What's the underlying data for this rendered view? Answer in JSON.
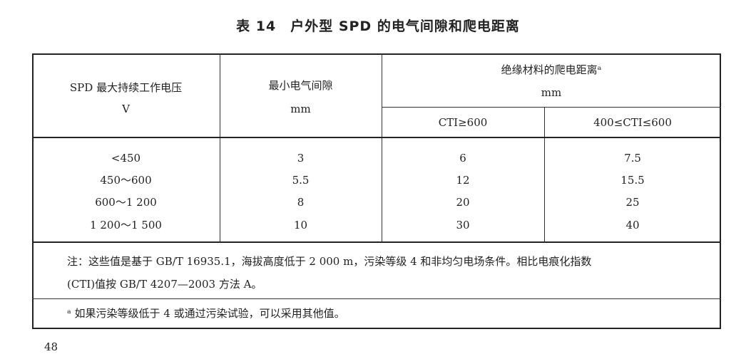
{
  "title": "表 14　户外型 SPD 的电气间隙和爬电距离",
  "table": {
    "headers": {
      "col1": {
        "label": "SPD 最大持续工作电压",
        "unit": "V"
      },
      "col2": {
        "label": "最小电气间隙",
        "unit": "mm"
      },
      "group": {
        "label": "绝缘材料的爬电距离ᵃ",
        "unit": "mm"
      },
      "col3": "CTI≥600",
      "col4": "400≤CTI≤600"
    },
    "rows": [
      [
        "<450",
        "3",
        "6",
        "7.5"
      ],
      [
        "450～600",
        "5.5",
        "12",
        "15.5"
      ],
      [
        "600～1 200",
        "8",
        "20",
        "25"
      ],
      [
        "1 200～1 500",
        "10",
        "30",
        "40"
      ]
    ],
    "note_line1": "注：这些值是基于 GB/T 16935.1，海拔高度低于 2 000 m，污染等级 4 和非均匀电场条件。相比电痕化指数",
    "note_line2": "(CTI)值按 GB/T 4207—2003 方法 A。",
    "footnote": "ᵃ 如果污染等级低于 4 或通过污染试验，可以采用其他值。"
  },
  "page_number": "48"
}
